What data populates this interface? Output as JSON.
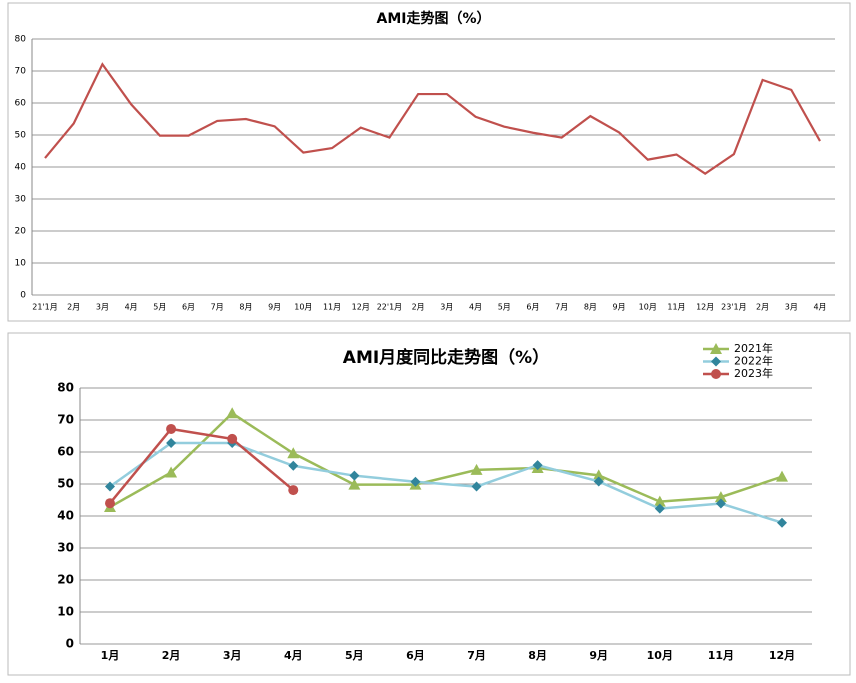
{
  "chart_data": [
    {
      "type": "line",
      "title": "AMI走势图（%）",
      "categories": [
        "21'1月",
        "2月",
        "3月",
        "4月",
        "5月",
        "6月",
        "7月",
        "8月",
        "9月",
        "10月",
        "11月",
        "12月",
        "22'1月",
        "2月",
        "3月",
        "4月",
        "5月",
        "6月",
        "7月",
        "8月",
        "9月",
        "10月",
        "11月",
        "12月",
        "23'1月",
        "2月",
        "3月",
        "4月"
      ],
      "series": [
        {
          "name": "AMI",
          "color": "#c0504d",
          "values": [
            42.8,
            53.6,
            72.1,
            59.6,
            49.8,
            49.8,
            54.4,
            55.0,
            52.7,
            44.5,
            45.9,
            52.3,
            49.2,
            62.8,
            62.8,
            55.7,
            52.6,
            50.7,
            49.2,
            55.9,
            50.8,
            42.3,
            43.9,
            37.9,
            44.0,
            67.2,
            64.1,
            48.1
          ]
        }
      ],
      "ylim": [
        0,
        80
      ],
      "yticks": [
        0,
        10,
        20,
        30,
        40,
        50,
        60,
        70,
        80
      ],
      "grid": true,
      "legend": false
    },
    {
      "type": "line",
      "title": "AMI月度同比走势图（%）",
      "categories": [
        "1月",
        "2月",
        "3月",
        "4月",
        "5月",
        "6月",
        "7月",
        "8月",
        "9月",
        "10月",
        "11月",
        "12月"
      ],
      "series": [
        {
          "name": "2021年",
          "color": "#9bbb59",
          "marker": "triangle",
          "values": [
            42.8,
            53.6,
            72.1,
            59.6,
            49.8,
            49.8,
            54.4,
            55.0,
            52.7,
            44.5,
            45.9,
            52.3
          ]
        },
        {
          "name": "2022年",
          "color": "#93cddd",
          "marker": "diamond",
          "values": [
            49.2,
            62.8,
            62.8,
            55.7,
            52.6,
            50.7,
            49.2,
            55.9,
            50.8,
            42.3,
            43.9,
            37.9
          ]
        },
        {
          "name": "2023年",
          "color": "#c0504d",
          "marker": "circle",
          "values": [
            44.0,
            67.2,
            64.1,
            48.1,
            null,
            null,
            null,
            null,
            null,
            null,
            null,
            null
          ]
        }
      ],
      "ylim": [
        0,
        80
      ],
      "yticks": [
        0,
        10,
        20,
        30,
        40,
        50,
        60,
        70,
        80
      ],
      "grid": true,
      "legend": "top-right"
    }
  ]
}
